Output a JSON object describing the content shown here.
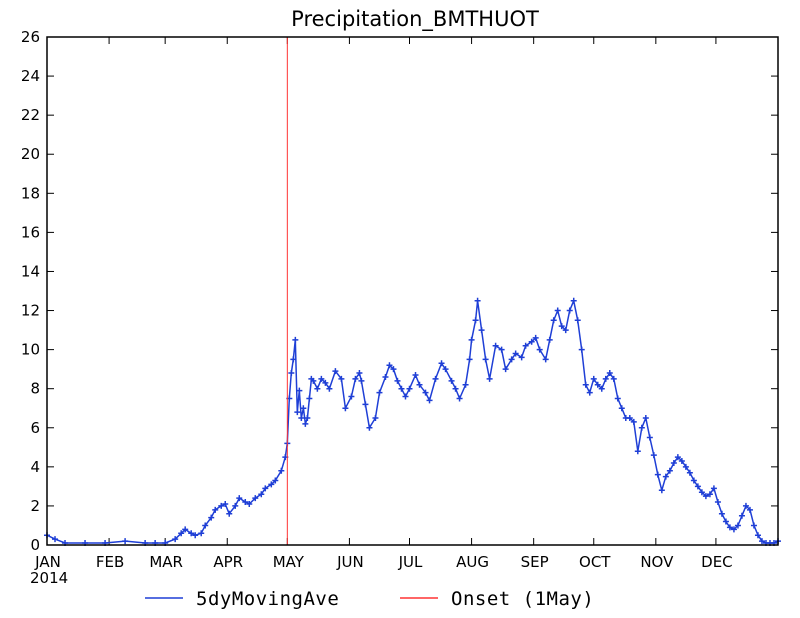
{
  "chart_data": {
    "type": "line",
    "title": "Precipitation_BMTHUOT",
    "xlabel": "",
    "ylabel": "",
    "ylim": [
      0,
      26
    ],
    "yticks": [
      0,
      2,
      4,
      6,
      8,
      10,
      12,
      14,
      16,
      18,
      20,
      22,
      24,
      26
    ],
    "xlim": [
      1,
      366
    ],
    "xticks": [
      {
        "day": 1,
        "label": "JAN"
      },
      {
        "day": 32,
        "label": "FEB"
      },
      {
        "day": 60,
        "label": "MAR"
      },
      {
        "day": 91,
        "label": "APR"
      },
      {
        "day": 121,
        "label": "MAY"
      },
      {
        "day": 152,
        "label": "JUN"
      },
      {
        "day": 182,
        "label": "JUL"
      },
      {
        "day": 213,
        "label": "AUG"
      },
      {
        "day": 244,
        "label": "SEP"
      },
      {
        "day": 274,
        "label": "OCT"
      },
      {
        "day": 305,
        "label": "NOV"
      },
      {
        "day": 335,
        "label": "DEC"
      }
    ],
    "year_label": "2014",
    "grid": false,
    "legend_position": "bottom",
    "series": [
      {
        "name": "5dyMovingAve",
        "color": "#1f3fd6",
        "x_day": [
          1,
          5,
          10,
          20,
          30,
          40,
          50,
          55,
          60,
          65,
          68,
          70,
          73,
          75,
          78,
          80,
          83,
          85,
          88,
          90,
          92,
          95,
          97,
          100,
          102,
          105,
          108,
          110,
          113,
          115,
          118,
          120,
          121,
          122,
          123,
          124,
          125,
          126,
          127,
          128,
          129,
          130,
          131,
          132,
          133,
          134,
          136,
          138,
          140,
          142,
          145,
          148,
          150,
          153,
          155,
          157,
          158,
          160,
          162,
          165,
          167,
          170,
          172,
          174,
          176,
          178,
          180,
          182,
          185,
          187,
          190,
          192,
          195,
          198,
          200,
          203,
          205,
          207,
          210,
          212,
          213,
          215,
          216,
          218,
          220,
          222,
          225,
          228,
          230,
          233,
          235,
          238,
          240,
          243,
          245,
          247,
          250,
          252,
          254,
          256,
          258,
          260,
          262,
          264,
          266,
          268,
          270,
          272,
          274,
          276,
          278,
          280,
          282,
          284,
          286,
          288,
          290,
          292,
          294,
          296,
          298,
          300,
          302,
          304,
          306,
          308,
          310,
          312,
          314,
          316,
          318,
          320,
          322,
          324,
          326,
          328,
          330,
          332,
          334,
          336,
          338,
          340,
          342,
          344,
          346,
          348,
          350,
          352,
          354,
          356,
          358,
          360,
          362,
          364,
          366
        ],
        "values": [
          0.5,
          0.3,
          0.1,
          0.1,
          0.1,
          0.2,
          0.1,
          0.1,
          0.1,
          0.3,
          0.6,
          0.8,
          0.6,
          0.5,
          0.6,
          1.0,
          1.4,
          1.8,
          2.0,
          2.1,
          1.6,
          2.0,
          2.4,
          2.2,
          2.1,
          2.4,
          2.6,
          2.9,
          3.1,
          3.3,
          3.8,
          4.5,
          5.2,
          7.5,
          8.8,
          9.5,
          10.5,
          6.8,
          7.9,
          6.5,
          7.0,
          6.2,
          6.5,
          7.5,
          8.5,
          8.4,
          8.0,
          8.5,
          8.3,
          8.0,
          8.9,
          8.5,
          7.0,
          7.6,
          8.5,
          8.8,
          8.4,
          7.2,
          6.0,
          6.5,
          7.8,
          8.6,
          9.2,
          9.0,
          8.4,
          8.0,
          7.6,
          8.0,
          8.7,
          8.2,
          7.8,
          7.4,
          8.5,
          9.3,
          9.0,
          8.4,
          8.0,
          7.5,
          8.2,
          9.5,
          10.5,
          11.5,
          12.5,
          11.0,
          9.5,
          8.5,
          10.2,
          10.0,
          9.0,
          9.5,
          9.8,
          9.6,
          10.2,
          10.4,
          10.6,
          10.0,
          9.5,
          10.5,
          11.5,
          12.0,
          11.2,
          11.0,
          12.0,
          12.5,
          11.5,
          10.0,
          8.2,
          7.8,
          8.5,
          8.2,
          8.0,
          8.5,
          8.8,
          8.5,
          7.5,
          7.0,
          6.5,
          6.5,
          6.3,
          4.8,
          6.0,
          6.5,
          5.5,
          4.6,
          3.6,
          2.8,
          3.5,
          3.8,
          4.2,
          4.5,
          4.3,
          4.0,
          3.7,
          3.3,
          3.0,
          2.7,
          2.5,
          2.6,
          2.9,
          2.2,
          1.6,
          1.2,
          0.9,
          0.8,
          1.0,
          1.5,
          2.0,
          1.8,
          1.0,
          0.5,
          0.2,
          0.1,
          0.1,
          0.1,
          0.2
        ]
      },
      {
        "name": "Onset (1May)",
        "color": "#ff3333",
        "onset_day": 121
      }
    ]
  }
}
